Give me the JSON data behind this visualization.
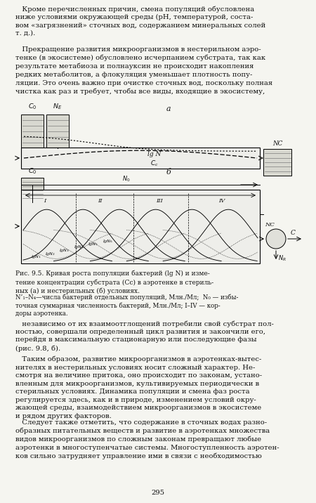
{
  "bg_color": "#f5f5f0",
  "line_color": "#000000",
  "text_color": "#111111",
  "fig_width": 4.5,
  "fig_height": 7.16,
  "top_para1": "   Кроме перечисленных причин, смена популяций обусловлена\nниже условиями окружающей среды (рН, температурой, соста-\nвом «загрязнений» сточных вод, содержанием минеральных солей\nт. д.).",
  "top_para2": "   Прекращение развития микроорганизмов в нестерильном аэро-\nтенке (в экосистеме) обусловлено исчерпанием субстрата, так как\nрезультате метабиоза и полнауксин не происходит накопления\nредких метаболитов, а флокуляция уменьшает плотность попу-\nляции. Это очень важно при очистке сточных вод, поскольку полная\nчистка как раз и требует, чтобы все виды, входящие в экосистему,",
  "caption": "Рис. 9.5. Кривая роста популяции бактерий (lg N) и изме-\nтение концентрации субстрата (Cc) в аэротенке в стериль-\nных (а) и нестерильных (б) условиях.",
  "legend": "N’₁–N₄—числа бактерий отдельных популяций, Млн./Мл;  N₀ — избы-\nточная суммарная численность бактерий, Млн./Мл; I–IV — кор-\nдоры аэротенка.",
  "bot_para1": "   независимо от их взаимоотглощений потребили свой субстрат пол-\nностью, совершали определенный цикл развития и закончили его,\nперейдя в максимальную стационарную или последующие фазы\n(рис. 9.8, б).",
  "bot_para2": "   Таким образом, развитие микроорганизмов в аэротенках-вытес-\nнителях в нестерильных условиях носит сложный характер. Не-\nсмотря на величине притока, оно происходит по законам, устано-\nвленным для микроорганизмов, культивируемых периодически в\nстерильных условиях. Динамика популяции и смена фаз роста\nрегулируется здесь, как и в природе, изменением условий окру-\nжающей среды, взаимодействием микроорганизмов в экосистеме\nи рядом других факторов.",
  "bot_para3": "   Следует также отметить, что содержание в сточных водах разно-\nобразных питательных веществ и развитие в аэротенках множества\nвидов микроорганизмов по сложным законам превращают любые\nаэротенки в многоступенчатые системы. Многоступленность аэротен-\nков сильно затрудняет управление ими в связи с необходимостью",
  "pagenum": "295"
}
